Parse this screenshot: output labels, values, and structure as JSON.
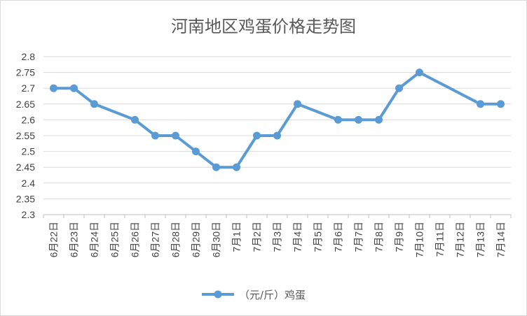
{
  "chart_data": {
    "type": "line",
    "title": "河南地区鸡蛋价格走势图",
    "xlabel": "",
    "ylabel": "",
    "categories": [
      "6月22日",
      "6月23日",
      "6月24日",
      "6月25日",
      "6月26日",
      "6月27日",
      "6月28日",
      "6月29日",
      "6月30日",
      "7月1日",
      "7月2日",
      "7月3日",
      "7月4日",
      "7月5日",
      "7月6日",
      "7月7日",
      "7月8日",
      "7月9日",
      "7月10日",
      "7月11日",
      "7月12日",
      "7月13日",
      "7月14日"
    ],
    "series": [
      {
        "name": "（元/斤）鸡蛋",
        "color": "#5b9bd5",
        "values": [
          2.7,
          2.7,
          2.65,
          null,
          2.6,
          2.55,
          2.55,
          2.5,
          2.45,
          2.45,
          2.55,
          2.55,
          2.65,
          null,
          2.6,
          2.6,
          2.6,
          2.7,
          2.75,
          null,
          null,
          2.65,
          2.65
        ]
      }
    ],
    "ylim": [
      2.3,
      2.8
    ],
    "yticks": [
      "2.3",
      "2.35",
      "2.4",
      "2.45",
      "2.5",
      "2.55",
      "2.6",
      "2.65",
      "2.7",
      "2.75",
      "2.8"
    ],
    "grid": true,
    "legend": "bottom",
    "gaps": "connect"
  }
}
